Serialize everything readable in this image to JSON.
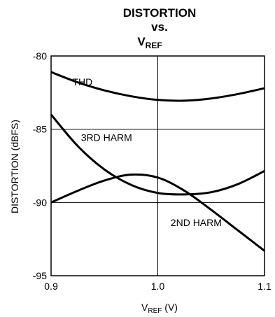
{
  "chart_data": {
    "type": "line",
    "title": [
      "DISTORTION",
      "vs."
    ],
    "title_line3": {
      "main": "V",
      "sub": "REF"
    },
    "xlabel": {
      "main": "V",
      "sub": "REF",
      "tail": " (V)"
    },
    "ylabel": "DISTORTION (dBFS)",
    "xlim": [
      0.9,
      1.1
    ],
    "ylim": [
      -95,
      -80
    ],
    "xticks": [
      0.9,
      1.0,
      1.1
    ],
    "xtick_labels": [
      "0.9",
      "1.0",
      "1.1"
    ],
    "yticks": [
      -80,
      -85,
      -90,
      -95
    ],
    "ytick_labels": [
      "-80",
      "-85",
      "-90",
      "-95"
    ],
    "grid": true,
    "series": [
      {
        "name": "THD",
        "x": [
          0.9,
          0.925,
          0.95,
          0.975,
          1.0,
          1.025,
          1.05,
          1.075,
          1.1
        ],
        "y": [
          -81.1,
          -81.8,
          -82.35,
          -82.75,
          -83.0,
          -83.05,
          -82.9,
          -82.6,
          -82.2
        ]
      },
      {
        "name": "3RD HARM",
        "x": [
          0.9,
          0.925,
          0.95,
          0.975,
          1.0,
          1.025,
          1.05,
          1.075,
          1.1
        ],
        "y": [
          -84.0,
          -86.15,
          -87.75,
          -88.8,
          -89.35,
          -89.45,
          -89.3,
          -88.75,
          -87.85
        ]
      },
      {
        "name": "2ND HARM",
        "x": [
          0.9,
          0.925,
          0.95,
          0.975,
          1.0,
          1.025,
          1.05,
          1.075,
          1.1
        ],
        "y": [
          -90.0,
          -89.2,
          -88.5,
          -88.1,
          -88.3,
          -89.2,
          -90.5,
          -91.9,
          -93.3
        ]
      }
    ],
    "annotations": [
      {
        "text": "THD",
        "x": 0.92,
        "y": -82.0
      },
      {
        "text": "3RD HARM",
        "x": 0.928,
        "y": -85.8
      },
      {
        "text": "2ND HARM",
        "x": 1.012,
        "y": -91.6
      }
    ]
  }
}
